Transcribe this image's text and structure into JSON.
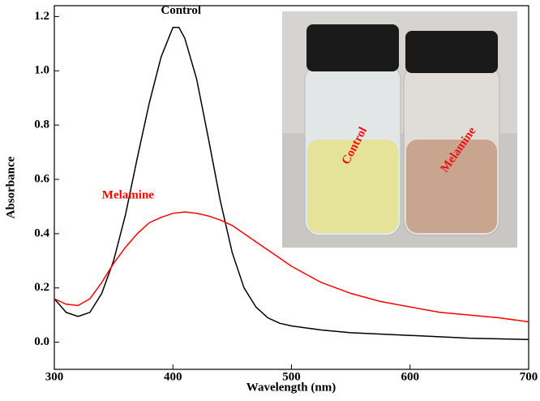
{
  "chart_data": {
    "type": "line",
    "xlabel": "Wavelength (nm)",
    "ylabel": "Absorbance",
    "xlim": [
      300,
      700
    ],
    "ylim": [
      -0.1,
      1.24
    ],
    "xticks": [
      300,
      400,
      500,
      600,
      700
    ],
    "yticks": [
      {
        "value": 0,
        "label": "0.0"
      },
      0.2,
      0.4,
      0.6,
      0.8,
      {
        "value": 1,
        "label": "1.0"
      },
      1.2
    ],
    "series": [
      {
        "name": "Control",
        "color": "#000000",
        "x": [
          300,
          310,
          320,
          330,
          340,
          350,
          360,
          370,
          380,
          390,
          400,
          405,
          410,
          420,
          430,
          440,
          450,
          460,
          470,
          480,
          490,
          500,
          525,
          550,
          600,
          650,
          700
        ],
        "values": [
          0.16,
          0.11,
          0.095,
          0.11,
          0.18,
          0.3,
          0.47,
          0.68,
          0.88,
          1.05,
          1.16,
          1.16,
          1.12,
          0.97,
          0.75,
          0.52,
          0.33,
          0.2,
          0.13,
          0.09,
          0.07,
          0.06,
          0.045,
          0.035,
          0.025,
          0.015,
          0.01
        ]
      },
      {
        "name": "Melamine",
        "color": "#ff0000",
        "x": [
          300,
          310,
          320,
          330,
          340,
          350,
          360,
          370,
          380,
          390,
          400,
          410,
          420,
          430,
          440,
          450,
          460,
          470,
          480,
          490,
          500,
          525,
          550,
          575,
          600,
          625,
          650,
          675,
          700
        ],
        "values": [
          0.16,
          0.14,
          0.135,
          0.16,
          0.22,
          0.29,
          0.35,
          0.4,
          0.44,
          0.46,
          0.475,
          0.48,
          0.475,
          0.465,
          0.45,
          0.43,
          0.4,
          0.37,
          0.34,
          0.31,
          0.28,
          0.22,
          0.18,
          0.15,
          0.13,
          0.11,
          0.1,
          0.09,
          0.075
        ]
      }
    ],
    "inset_labels": [
      "Control",
      "Melamine"
    ]
  }
}
